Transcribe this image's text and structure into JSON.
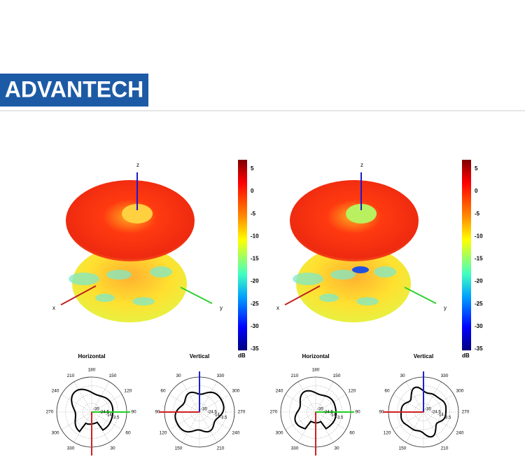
{
  "header": {
    "logo": "ADVANTECH"
  },
  "patterns": [
    {
      "axes": {
        "x": "x",
        "y": "y",
        "z": "z"
      },
      "colorbar": {
        "ticks": [
          5,
          0,
          -5,
          -10,
          -15,
          -20,
          -25,
          -30,
          -35
        ],
        "unit": "dB"
      },
      "polar": [
        {
          "title": "Horizontal",
          "angles": [
            "180",
            "150",
            "120",
            "90",
            "60",
            "30",
            "330",
            "300",
            "270",
            "240",
            "210"
          ],
          "radial": [
            "-35",
            "-24.5",
            "-14",
            "-3.5"
          ]
        },
        {
          "title": "Vertical",
          "angles": [
            "330",
            "300",
            "270",
            "240",
            "210",
            "150",
            "120",
            "90",
            "60",
            "30"
          ],
          "radial": [
            "-35",
            "-24.5",
            "-14",
            "-3.5"
          ]
        }
      ]
    },
    {
      "axes": {
        "x": "x",
        "y": "y",
        "z": "z"
      },
      "colorbar": {
        "ticks": [
          5,
          0,
          -5,
          -10,
          -15,
          -20,
          -25,
          -30,
          -35
        ],
        "unit": "dB"
      },
      "polar": [
        {
          "title": "Horizontal",
          "angles": [
            "180",
            "150",
            "120",
            "90",
            "60",
            "30",
            "330",
            "300",
            "270",
            "240",
            "210"
          ],
          "radial": [
            "-35",
            "-24.5",
            "-14",
            "-3.5"
          ]
        },
        {
          "title": "Vertical",
          "angles": [
            "330",
            "300",
            "270",
            "240",
            "210",
            "150",
            "120",
            "90",
            "60",
            "30"
          ],
          "radial": [
            "-35",
            "-24.5",
            "-14",
            "-3.5"
          ]
        }
      ]
    }
  ]
}
